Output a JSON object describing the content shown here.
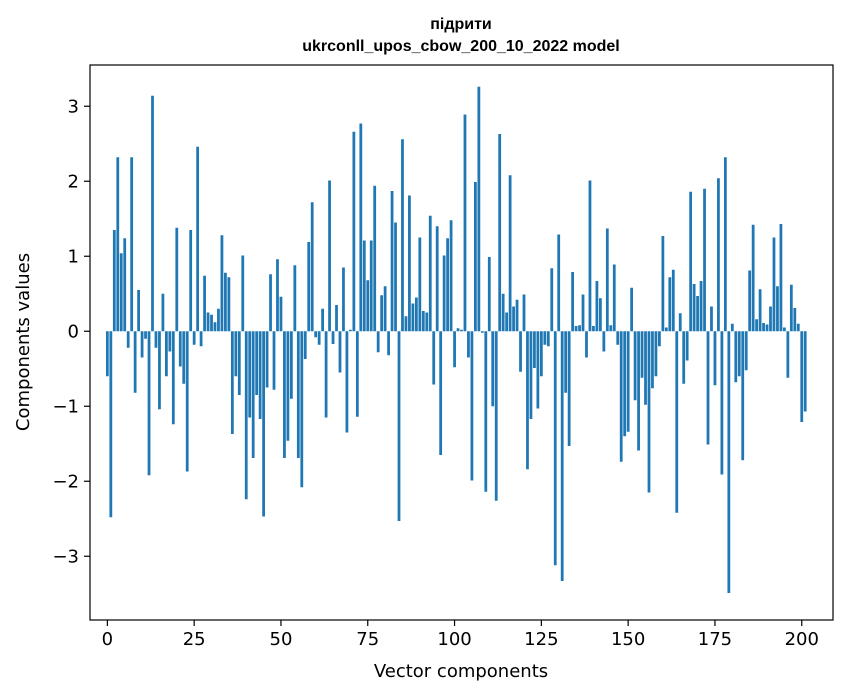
{
  "chart_data": {
    "type": "bar",
    "title": [
      "підрити",
      "ukrconll_upos_cbow_200_10_2022 model"
    ],
    "xlabel": "Vector components",
    "ylabel": "Components values",
    "xlim": [
      -5,
      209
    ],
    "ylim": [
      -3.85,
      3.55
    ],
    "xticks": [
      0,
      25,
      50,
      75,
      100,
      125,
      150,
      175,
      200
    ],
    "yticks": [
      -3,
      -2,
      -1,
      0,
      1,
      2,
      3
    ],
    "bar_color": "#1f77b4",
    "grid": false,
    "legend": "none",
    "values": [
      -0.6,
      -2.48,
      1.35,
      2.32,
      1.04,
      1.24,
      -0.22,
      2.32,
      -0.82,
      0.55,
      -0.35,
      -0.1,
      -1.92,
      3.14,
      -0.22,
      -1.04,
      0.5,
      -0.6,
      -0.27,
      -1.24,
      1.38,
      -0.47,
      -0.7,
      -1.87,
      1.35,
      -0.18,
      2.46,
      -0.2,
      0.74,
      0.25,
      0.22,
      0.12,
      0.3,
      1.28,
      0.78,
      0.72,
      -1.37,
      -0.6,
      -0.85,
      1.01,
      -2.24,
      -1.15,
      -1.69,
      -0.85,
      -1.17,
      -2.47,
      -0.75,
      0.76,
      -0.78,
      0.96,
      0.46,
      -1.69,
      -1.46,
      -0.9,
      0.88,
      -1.69,
      -2.08,
      -0.37,
      1.19,
      1.72,
      -0.08,
      -0.18,
      0.3,
      -1.15,
      2.01,
      -0.17,
      0.35,
      -0.55,
      0.85,
      -1.35,
      0.02,
      2.66,
      -1.14,
      2.77,
      1.21,
      0.68,
      1.21,
      1.94,
      -0.28,
      0.48,
      0.6,
      -0.32,
      1.87,
      1.45,
      -2.53,
      2.56,
      0.2,
      1.81,
      0.37,
      0.45,
      1.25,
      0.27,
      0.25,
      1.54,
      -0.71,
      1.4,
      -1.65,
      1.01,
      1.24,
      1.48,
      -0.48,
      0.04,
      0.02,
      2.89,
      -0.35,
      -1.99,
      1.99,
      3.26,
      -0.02,
      -2.14,
      0.99,
      -1.0,
      -2.26,
      2.63,
      0.5,
      0.25,
      2.08,
      0.33,
      0.42,
      -0.54,
      0.49,
      -1.84,
      -1.17,
      -0.49,
      -1.03,
      -0.6,
      -0.18,
      -0.2,
      0.84,
      -3.12,
      1.29,
      -3.33,
      -0.82,
      -1.53,
      0.79,
      0.07,
      0.08,
      0.49,
      -0.35,
      2.01,
      0.07,
      0.67,
      0.44,
      -0.27,
      1.37,
      0.08,
      0.89,
      -0.18,
      -1.74,
      -1.4,
      -1.34,
      0.58,
      -0.92,
      -1.59,
      -0.62,
      -0.98,
      -2.15,
      -0.76,
      -0.6,
      -0.2,
      1.27,
      0.05,
      0.72,
      0.82,
      -2.42,
      0.24,
      -0.7,
      -0.39,
      1.86,
      0.63,
      0.47,
      0.67,
      1.9,
      -1.51,
      0.33,
      -0.72,
      2.04,
      -1.91,
      2.32,
      -3.49,
      0.1,
      -0.68,
      -0.6,
      -1.72,
      -0.52,
      0.81,
      1.42,
      0.16,
      0.56,
      0.11,
      0.09,
      0.33,
      1.25,
      0.6,
      1.43,
      0.05,
      -0.62,
      0.62,
      0.31,
      0.1,
      -1.21,
      -1.07
    ]
  }
}
